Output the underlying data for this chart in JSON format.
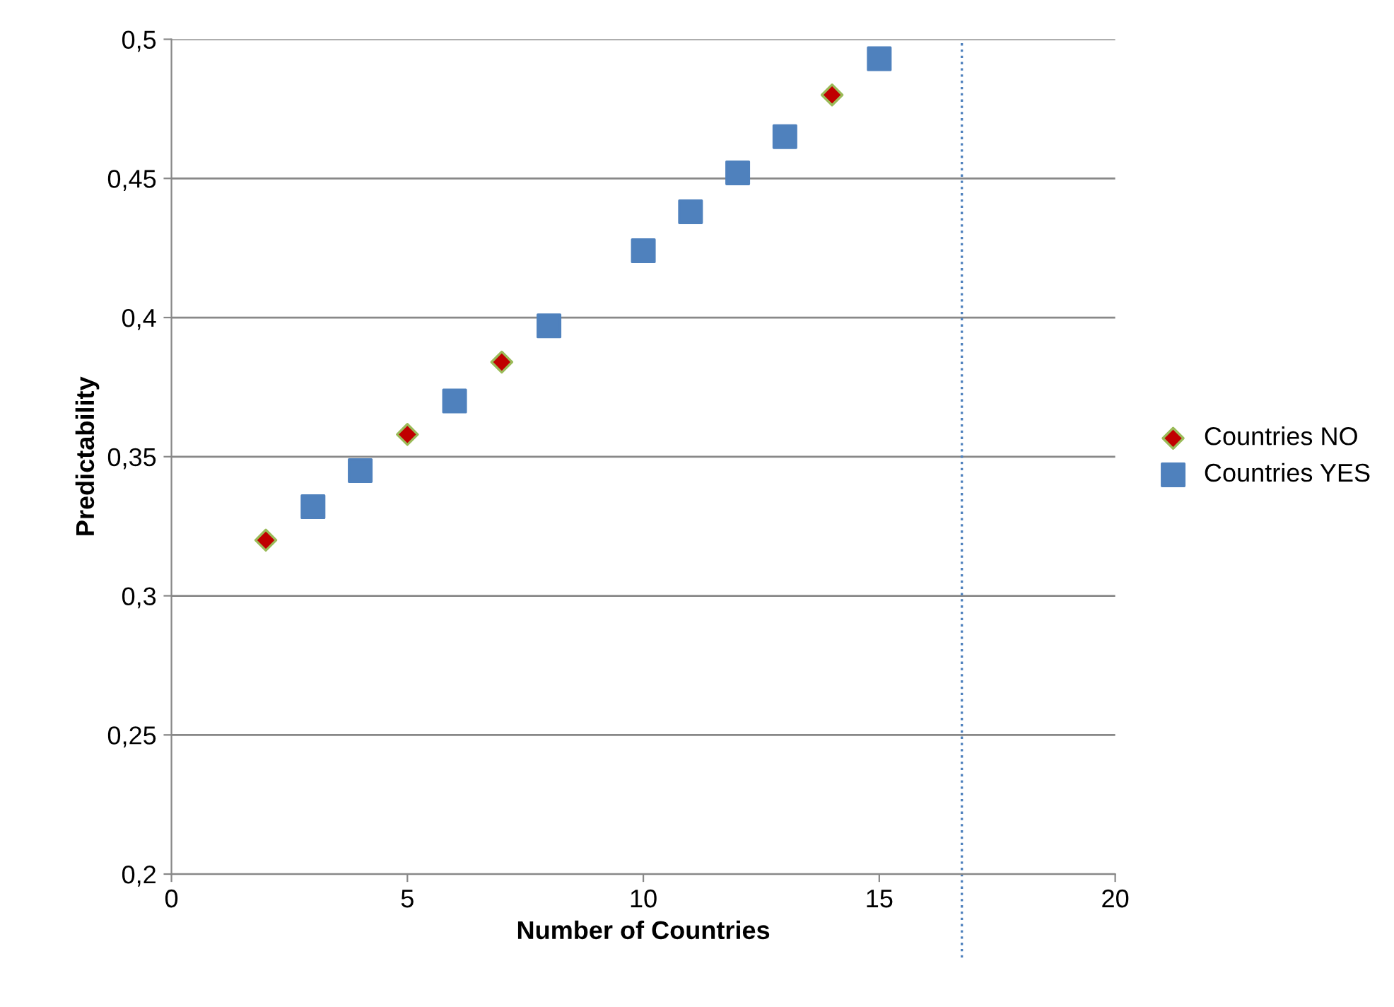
{
  "chart_data": {
    "type": "scatter",
    "xlabel": "Number of Countries",
    "ylabel": "Predictability",
    "series": [
      {
        "name": "Countries NO",
        "color": "#c00000",
        "marker": "diamond",
        "x": [
          2,
          5,
          7,
          14
        ],
        "values": [
          0.32,
          0.358,
          0.384,
          0.48
        ]
      },
      {
        "name": "Countries YES",
        "color": "#4f81bd",
        "marker": "square",
        "x": [
          3,
          4,
          6,
          8,
          10,
          11,
          12,
          13,
          15
        ],
        "values": [
          0.332,
          0.345,
          0.37,
          0.397,
          0.424,
          0.438,
          0.452,
          0.465,
          0.493
        ]
      }
    ],
    "xlim": [
      0,
      20
    ],
    "xticks": [
      0,
      5,
      10,
      15,
      20
    ],
    "ylim": [
      0.2,
      0.5
    ],
    "yticks": [
      {
        "value": 0.2,
        "label": "0,2"
      },
      {
        "value": 0.25,
        "label": "0,25"
      },
      {
        "value": 0.3,
        "label": "0,3"
      },
      {
        "value": 0.35,
        "label": "0,35"
      },
      {
        "value": 0.4,
        "label": "0,4"
      },
      {
        "value": 0.45,
        "label": "0,45"
      },
      {
        "value": 0.5,
        "label": "0,5"
      }
    ],
    "ref_lines": [
      {
        "axis": "x",
        "value": 16.75,
        "color": "#4f81bd",
        "line_style": "dotted"
      }
    ],
    "grid": "y",
    "legend": "right"
  }
}
